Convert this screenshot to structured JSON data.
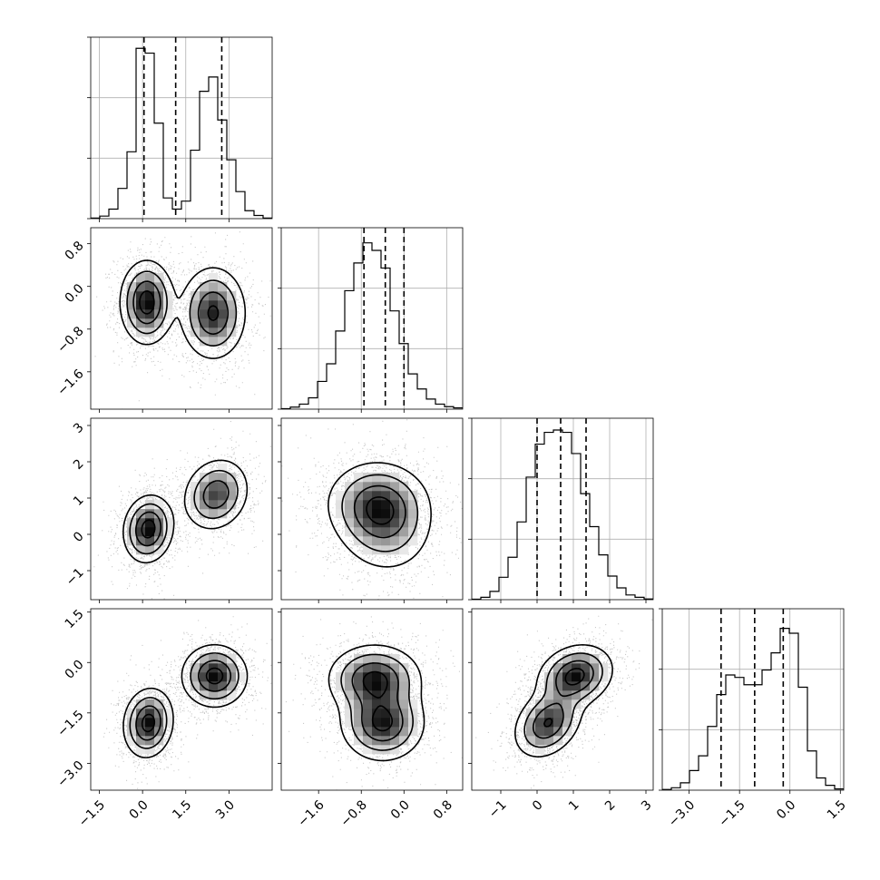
{
  "chart_data": {
    "type": "corner",
    "parameters": [
      {
        "ticks": [
          -1.5,
          0.0,
          1.5,
          3.0
        ],
        "tick_labels": [
          "−1.5",
          "0.0",
          "1.5",
          "3.0"
        ],
        "range": [
          -1.8,
          4.5
        ]
      },
      {
        "ticks": [
          -1.6,
          -0.8,
          0.0,
          0.8
        ],
        "tick_labels": [
          "−1.6",
          "−0.8",
          "0.0",
          "0.8"
        ],
        "range": [
          -2.3,
          1.1
        ]
      },
      {
        "ticks": [
          -1,
          0,
          1,
          2,
          3
        ],
        "tick_labels": [
          "−1",
          "0",
          "1",
          "2",
          "3"
        ],
        "range": [
          -1.8,
          3.2
        ]
      },
      {
        "ticks": [
          -3.0,
          -1.5,
          0.0,
          1.5
        ],
        "tick_labels": [
          "−3.0",
          "−1.5",
          "0.0",
          "1.5"
        ],
        "range": [
          -3.8,
          1.6
        ]
      }
    ],
    "histograms": [
      {
        "quantiles": [
          0.05,
          1.15,
          2.75
        ],
        "bin_edges": [
          -1.8,
          -1.485,
          -1.17,
          -0.855,
          -0.54,
          -0.225,
          0.09,
          0.405,
          0.72,
          1.035,
          1.35,
          1.665,
          1.98,
          2.295,
          2.61,
          2.925,
          3.24,
          3.555,
          3.87,
          4.185,
          4.5
        ],
        "values": [
          0.2,
          0.8,
          3.0,
          9.5,
          21.0,
          53.5,
          52.0,
          30.0,
          6.5,
          3.0,
          5.5,
          21.5,
          40.0,
          44.5,
          31.0,
          18.5,
          8.5,
          2.5,
          1.0,
          0.2
        ],
        "ymax": 57
      },
      {
        "quantiles": [
          -0.75,
          -0.35,
          0.0
        ],
        "bin_edges": [
          -2.3,
          -2.13,
          -1.96,
          -1.79,
          -1.62,
          -1.45,
          -1.28,
          -1.11,
          -0.94,
          -0.77,
          -0.6,
          -0.43,
          -0.26,
          -0.09,
          0.08,
          0.25,
          0.42,
          0.59,
          0.76,
          0.93,
          1.1
        ],
        "values": [
          0.2,
          0.8,
          2.0,
          4.5,
          11.0,
          18.0,
          31.0,
          47.0,
          58.0,
          66.0,
          63.0,
          56.0,
          39.0,
          26.0,
          14.0,
          8.0,
          4.0,
          2.0,
          1.0,
          0.5
        ],
        "ymax": 72
      },
      {
        "quantiles": [
          0.0,
          0.65,
          1.35
        ],
        "bin_edges": [
          -1.8,
          -1.55,
          -1.3,
          -1.05,
          -0.8,
          -0.55,
          -0.3,
          -0.05,
          0.2,
          0.45,
          0.7,
          0.95,
          1.2,
          1.45,
          1.7,
          1.95,
          2.2,
          2.45,
          2.7,
          2.95,
          3.2
        ],
        "values": [
          0.2,
          1.0,
          3.5,
          9.5,
          18.0,
          33.0,
          52.0,
          66.0,
          71.0,
          72.0,
          71.0,
          62.0,
          45.0,
          31.0,
          19.0,
          10.0,
          5.0,
          2.0,
          1.0,
          0.3
        ],
        "ymax": 77
      },
      {
        "quantiles": [
          -2.05,
          -1.05,
          -0.2
        ],
        "bin_edges": [
          -3.8,
          -3.53,
          -3.26,
          -2.99,
          -2.72,
          -2.45,
          -2.18,
          -1.91,
          -1.64,
          -1.37,
          -1.1,
          -0.83,
          -0.56,
          -0.29,
          -0.02,
          0.25,
          0.52,
          0.79,
          1.06,
          1.33,
          1.6
        ],
        "values": [
          0.3,
          1.0,
          3.0,
          8.0,
          14.0,
          26.0,
          39.0,
          47.0,
          46.0,
          43.0,
          43.0,
          49.0,
          56.0,
          66.0,
          64.0,
          42.0,
          16.0,
          5.0,
          2.0,
          0.5
        ],
        "ymax": 74
      }
    ],
    "pairs": [
      {
        "x": 0,
        "y": 1,
        "components": [
          {
            "mean": [
              0.15,
              -0.3
            ],
            "sd": [
              0.45,
              0.38
            ],
            "rho": 0.0,
            "weight": 1.0
          },
          {
            "mean": [
              2.45,
              -0.5
            ],
            "sd": [
              0.55,
              0.42
            ],
            "rho": 0.0,
            "weight": 0.9
          }
        ]
      },
      {
        "x": 0,
        "y": 2,
        "components": [
          {
            "mean": [
              0.2,
              0.15
            ],
            "sd": [
              0.42,
              0.45
            ],
            "rho": 0.1,
            "weight": 1.0
          },
          {
            "mean": [
              2.55,
              1.1
            ],
            "sd": [
              0.55,
              0.48
            ],
            "rho": 0.15,
            "weight": 0.8
          }
        ]
      },
      {
        "x": 0,
        "y": 3,
        "components": [
          {
            "mean": [
              0.2,
              -1.8
            ],
            "sd": [
              0.42,
              0.5
            ],
            "rho": 0.1,
            "weight": 1.0
          },
          {
            "mean": [
              2.5,
              -0.4
            ],
            "sd": [
              0.55,
              0.45
            ],
            "rho": 0.0,
            "weight": 1.0
          }
        ]
      },
      {
        "x": 1,
        "y": 2,
        "components": [
          {
            "mean": [
              -0.4,
              0.4
            ],
            "sd": [
              0.45,
              0.7
            ],
            "rho": -0.1,
            "weight": 1.0
          },
          {
            "mean": [
              -0.5,
              0.9
            ],
            "sd": [
              0.48,
              0.55
            ],
            "rho": 0.0,
            "weight": 0.7
          }
        ]
      },
      {
        "x": 1,
        "y": 3,
        "components": [
          {
            "mean": [
              -0.55,
              -0.5
            ],
            "sd": [
              0.42,
              0.5
            ],
            "rho": 0.0,
            "weight": 1.0
          },
          {
            "mean": [
              -0.4,
              -1.8
            ],
            "sd": [
              0.38,
              0.55
            ],
            "rho": 0.0,
            "weight": 1.0
          }
        ]
      },
      {
        "x": 2,
        "y": 3,
        "components": [
          {
            "mean": [
              0.3,
              -1.8
            ],
            "sd": [
              0.45,
              0.5
            ],
            "rho": 0.3,
            "weight": 1.0
          },
          {
            "mean": [
              1.05,
              -0.4
            ],
            "sd": [
              0.5,
              0.45
            ],
            "rho": 0.2,
            "weight": 1.1
          }
        ]
      }
    ],
    "grid": true,
    "colors": {
      "line": "#000000",
      "grid": "#b0b0b0",
      "points": "#666666",
      "background": "#ffffff"
    }
  }
}
